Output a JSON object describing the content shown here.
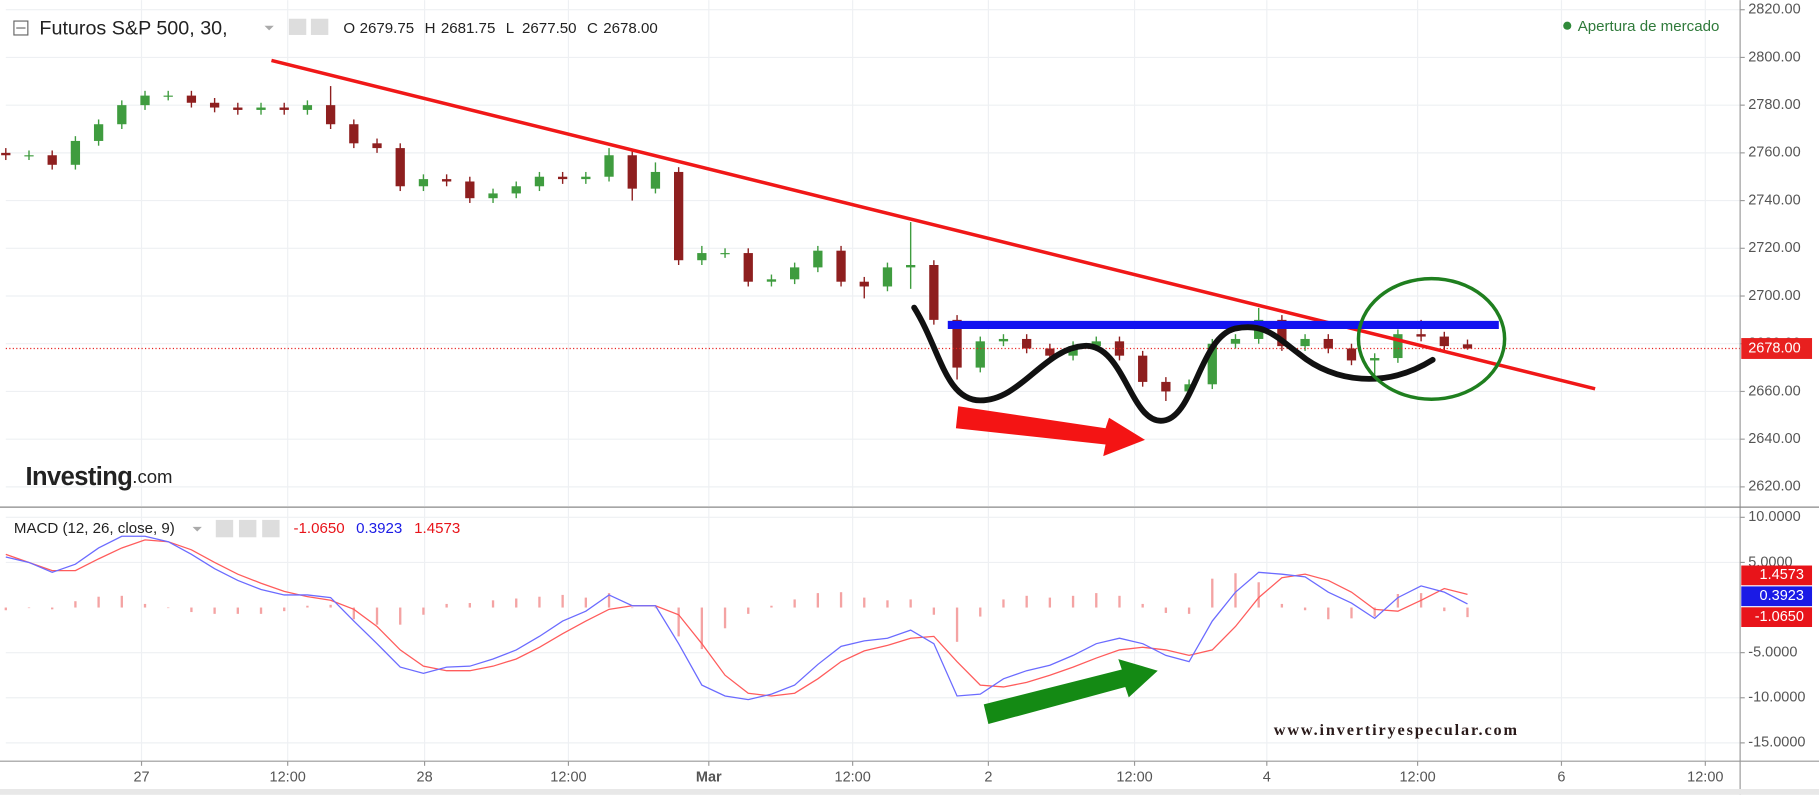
{
  "chart_data": [
    {
      "type": "candlestick",
      "title": "Futuros S&P 500, 30,",
      "ohlc": [
        {
          "key": "O",
          "text": "2679.75"
        },
        {
          "key": "H",
          "text": "2681.75"
        },
        {
          "key": "L",
          "text": "2677.50"
        },
        {
          "key": "C",
          "text": "2678.00"
        }
      ],
      "status": "Apertura de mercado",
      "logo": {
        "brand": "Investing",
        "suffix": ".com"
      },
      "up_color": "#3f9c3f",
      "down_color": "#8e1f1f",
      "open": [
        2760,
        2759,
        2759,
        2755,
        2765,
        2772,
        2780,
        2784,
        2784,
        2781,
        2779,
        2778,
        2779,
        2778,
        2780,
        2772,
        2764,
        2762,
        2746,
        2749,
        2748,
        2741,
        2743,
        2746,
        2750,
        2749,
        2750,
        2759,
        2745,
        2752,
        2715,
        2718,
        2718,
        2706,
        2707,
        2712,
        2719,
        2706,
        2704,
        2712,
        2713,
        2690,
        2670,
        2681,
        2682,
        2678,
        2675,
        2679,
        2681,
        2675,
        2664,
        2660,
        2663,
        2680,
        2682,
        2690,
        2679,
        2682,
        2678,
        2673,
        2674,
        2684,
        2683,
        2679.75
      ],
      "high": [
        2762,
        2761,
        2761,
        2767,
        2774,
        2782,
        2786,
        2786,
        2786,
        2783,
        2781,
        2781,
        2781,
        2782,
        2788,
        2774,
        2766,
        2764,
        2751,
        2751,
        2750,
        2745,
        2748,
        2752,
        2752,
        2752,
        2762,
        2761,
        2756,
        2754,
        2721,
        2720,
        2720,
        2709,
        2714,
        2721,
        2721,
        2708,
        2714,
        2731,
        2715,
        2692,
        2683,
        2684,
        2684,
        2680,
        2681,
        2683,
        2683,
        2677,
        2666,
        2665,
        2682,
        2684,
        2695,
        2692,
        2684,
        2684,
        2680,
        2676,
        2686,
        2690,
        2685,
        2681.75
      ],
      "low": [
        2757,
        2757,
        2753,
        2753,
        2763,
        2770,
        2778,
        2782,
        2779,
        2777,
        2776,
        2776,
        2776,
        2776,
        2770,
        2762,
        2760,
        2744,
        2744,
        2746,
        2739,
        2739,
        2741,
        2744,
        2747,
        2747,
        2748,
        2740,
        2743,
        2713,
        2713,
        2716,
        2704,
        2704,
        2705,
        2710,
        2704,
        2699,
        2702,
        2703,
        2688,
        2665,
        2668,
        2679,
        2676,
        2673,
        2673,
        2677,
        2673,
        2662,
        2656,
        2658,
        2661,
        2678,
        2680,
        2677,
        2677,
        2676,
        2671,
        2667,
        2672,
        2681,
        2677,
        2677.5
      ],
      "close": [
        2759,
        2759,
        2755,
        2765,
        2772,
        2780,
        2784,
        2784,
        2781,
        2779,
        2778,
        2779,
        2778,
        2780,
        2772,
        2764,
        2762,
        2746,
        2749,
        2748,
        2741,
        2743,
        2746,
        2750,
        2749,
        2750,
        2759,
        2745,
        2752,
        2715,
        2718,
        2718,
        2706,
        2707,
        2712,
        2719,
        2706,
        2704,
        2712,
        2713,
        2690,
        2670,
        2681,
        2682,
        2678,
        2675,
        2679,
        2681,
        2675,
        2664,
        2660,
        2663,
        2680,
        2682,
        2690,
        2679,
        2682,
        2678,
        2673,
        2674,
        2684,
        2683,
        2679,
        2678
      ],
      "last_price": {
        "value": 2678,
        "label": "2678.00"
      },
      "last_price_color": "#e8201f",
      "xlim": [
        0,
        74.75
      ],
      "ylim": [
        2612,
        2824
      ],
      "yticks": [
        {
          "value": 2620,
          "label": "2620.00"
        },
        {
          "value": 2640,
          "label": "2640.00"
        },
        {
          "value": 2660,
          "label": "2660.00"
        },
        {
          "value": 2680,
          "label": "2680.00"
        },
        {
          "value": 2700,
          "label": "2700.00"
        },
        {
          "value": 2720,
          "label": "2720.00"
        },
        {
          "value": 2740,
          "label": "2740.00"
        },
        {
          "value": 2760,
          "label": "2760.00"
        },
        {
          "value": 2780,
          "label": "2780.00"
        },
        {
          "value": 2800,
          "label": "2800.00"
        },
        {
          "value": 2820,
          "label": "2820.00"
        }
      ],
      "grid": true
    },
    {
      "type": "macd",
      "title": "MACD (12, 26, close, 9)",
      "watermark": "www.invertiryespecular.com",
      "histogram": {
        "color": "#f4a3a3",
        "label_color": "#e8141a",
        "last_label": "-1.0650",
        "values": [
          -0.3,
          0,
          -0.2,
          0.7,
          1.2,
          1.3,
          0.4,
          0,
          -0.5,
          -0.7,
          -0.7,
          -0.7,
          -0.4,
          0.2,
          0.3,
          -1.3,
          -1.9,
          -1.9,
          -0.8,
          0.4,
          0.5,
          0.8,
          1.0,
          1.2,
          1.4,
          1.1,
          1.6,
          0,
          0,
          -3.2,
          -4.6,
          -2.3,
          -0.7,
          0.2,
          0.9,
          1.6,
          1.7,
          1.1,
          0.8,
          0.9,
          -0.8,
          -3.8,
          -1.0,
          0.9,
          1.3,
          1.1,
          1.3,
          1.6,
          1.3,
          0.4,
          -0.6,
          -0.7,
          3.2,
          3.8,
          2.8,
          0.4,
          -0.3,
          -1.3,
          -1.2,
          -1.0,
          1.5,
          1.6,
          -0.4,
          -1.065
        ]
      },
      "macd": {
        "color": "#6b6bff",
        "label_color": "#1a1ae6",
        "last_label": "0.3923",
        "values": [
          5.6,
          5.0,
          3.9,
          4.8,
          6.6,
          7.9,
          7.9,
          7.3,
          5.9,
          4.3,
          3.0,
          2.0,
          1.4,
          1.4,
          1.1,
          -1.5,
          -4.0,
          -6.6,
          -7.3,
          -6.6,
          -6.5,
          -5.7,
          -4.7,
          -3.2,
          -1.5,
          -0.4,
          1.4,
          0.2,
          0.2,
          -4.0,
          -8.6,
          -9.8,
          -10.2,
          -9.6,
          -8.6,
          -6.3,
          -4.3,
          -3.7,
          -3.4,
          -2.5,
          -4.0,
          -9.8,
          -9.6,
          -7.9,
          -7.0,
          -6.4,
          -5.3,
          -4.0,
          -3.4,
          -4.0,
          -5.3,
          -6.0,
          -1.5,
          1.7,
          3.9,
          3.7,
          3.4,
          1.7,
          0.5,
          -1.2,
          1.1,
          2.4,
          1.7,
          0.3923
        ]
      },
      "signal": {
        "color": "#ff5c5c",
        "label_color": "#e8141a",
        "last_label": "1.4573",
        "values": [
          5.9,
          5.0,
          4.1,
          4.1,
          5.4,
          6.6,
          7.5,
          7.3,
          6.4,
          5.0,
          3.7,
          2.7,
          1.8,
          1.2,
          0.8,
          -0.2,
          -2.1,
          -4.7,
          -6.5,
          -7.0,
          -7.0,
          -6.5,
          -5.7,
          -4.4,
          -2.9,
          -1.5,
          -0.2,
          0.2,
          0.2,
          -0.8,
          -4.0,
          -7.5,
          -9.5,
          -9.8,
          -9.5,
          -7.9,
          -6.0,
          -4.8,
          -4.2,
          -3.4,
          -3.2,
          -6.0,
          -8.6,
          -8.8,
          -8.3,
          -7.5,
          -6.6,
          -5.6,
          -4.7,
          -4.4,
          -4.7,
          -5.3,
          -4.7,
          -2.1,
          1.1,
          3.3,
          3.7,
          3.0,
          1.7,
          -0.2,
          -0.4,
          0.8,
          2.1,
          1.4573
        ]
      },
      "xlim": [
        0,
        74.75
      ],
      "ylim": [
        -16.9,
        11.0
      ],
      "yticks": [
        {
          "value": -15,
          "label": "-15.0000"
        },
        {
          "value": -10,
          "label": "-10.0000"
        },
        {
          "value": -5,
          "label": "-5.0000"
        },
        {
          "value": 5,
          "label": "5.0000"
        },
        {
          "value": 10,
          "label": "10.0000"
        }
      ],
      "xticks": [
        {
          "value": 5.85,
          "label": "27"
        },
        {
          "value": 12.15,
          "label": "12:00"
        },
        {
          "value": 18.05,
          "label": "28"
        },
        {
          "value": 24.25,
          "label": "12:00"
        },
        {
          "value": 30.3,
          "label": "Mar"
        },
        {
          "value": 36.5,
          "label": "12:00"
        },
        {
          "value": 42.35,
          "label": "2"
        },
        {
          "value": 48.65,
          "label": "12:00"
        },
        {
          "value": 54.35,
          "label": "4"
        },
        {
          "value": 60.85,
          "label": "12:00"
        },
        {
          "value": 67.05,
          "label": "6"
        },
        {
          "value": 73.25,
          "label": "12:00"
        }
      ],
      "grid": true
    }
  ]
}
